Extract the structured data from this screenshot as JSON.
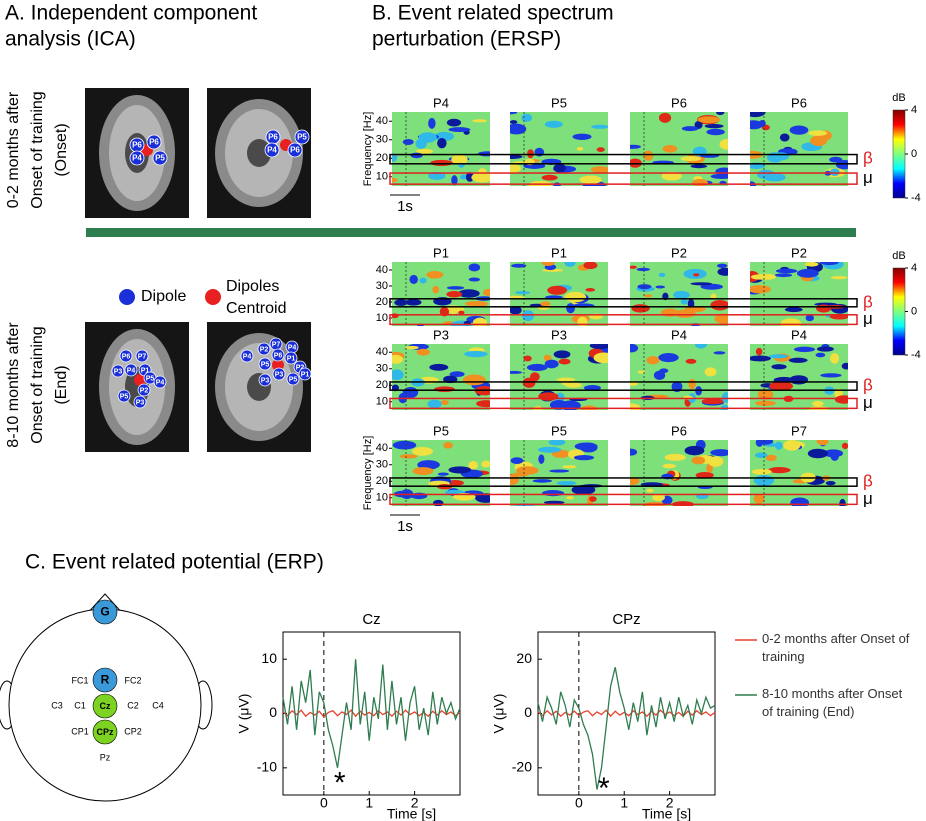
{
  "panel_a": {
    "title": [
      "A. Independent component",
      "analysis (ICA)"
    ],
    "rows": [
      {
        "label": [
          "0-2 months after",
          "Onset of training",
          "(Onset)"
        ]
      },
      {
        "label": [
          "8-10 months after",
          "Onset of training",
          "(End)"
        ]
      }
    ],
    "legend": {
      "dipole": "Dipole",
      "centroid": [
        "Dipoles",
        "Centroid"
      ]
    },
    "onset_axial": [
      "P6",
      "P6",
      "P4",
      "P5"
    ],
    "onset_coronal": [
      "P5",
      "P6",
      "P4",
      "P6"
    ],
    "end_axial": [
      "P6",
      "P7",
      "P3",
      "P4",
      "P1",
      "P5",
      "P2",
      "P4",
      "P5",
      "P3"
    ],
    "end_coronal": [
      "P7",
      "P4",
      "P2",
      "P6",
      "P4",
      "P5",
      "P1",
      "P3",
      "P2",
      "P5",
      "P1",
      "P3"
    ]
  },
  "panel_b": {
    "title": [
      "B. Event related spectrum",
      "perturbation (ERSP)"
    ],
    "y_label": "Frequency [Hz]",
    "ylim": [
      5,
      45
    ],
    "yticks": [
      10,
      20,
      30,
      40
    ],
    "rows": [
      [
        "P4",
        "P5",
        "P6",
        "P6"
      ],
      [
        "P1",
        "P1",
        "P2",
        "P2"
      ],
      [
        "P3",
        "P3",
        "P4",
        "P4"
      ],
      [
        "P5",
        "P5",
        "P6",
        "P7"
      ]
    ],
    "bands": [
      {
        "label": "β",
        "range": [
          17,
          22
        ],
        "color": "#000000",
        "label_color": "#e02020"
      },
      {
        "label": "μ",
        "range": [
          6,
          12
        ],
        "color": "#e02020",
        "label_color": "#000000"
      }
    ],
    "colorbar": {
      "label": "dB",
      "clim": [
        -4,
        4
      ],
      "ticks": [
        4,
        0,
        -4
      ]
    },
    "scale_bar": "1s"
  },
  "panel_c": {
    "title": "C. Event related potential (ERP)",
    "head": {
      "ground": "G",
      "reference": "R",
      "Cz": "Cz",
      "CPz": "CPz",
      "others": [
        "FC1",
        "FC2",
        "C3",
        "C1",
        "C2",
        "C4",
        "CP1",
        "CP2",
        "Pz"
      ]
    }
  },
  "chart_data": [
    {
      "type": "line",
      "title": "Cz",
      "x_label": "Time [s]",
      "y_label": "V (μV)",
      "x": [
        -0.9,
        -0.8,
        -0.7,
        -0.6,
        -0.5,
        -0.4,
        -0.3,
        -0.2,
        -0.1,
        0,
        0.1,
        0.2,
        0.3,
        0.4,
        0.5,
        0.6,
        0.7,
        0.8,
        0.9,
        1,
        1.1,
        1.2,
        1.3,
        1.4,
        1.5,
        1.6,
        1.7,
        1.8,
        1.9,
        2,
        2.1,
        2.2,
        2.3,
        2.4,
        2.5,
        2.6,
        2.7,
        2.8,
        2.9,
        3
      ],
      "xlim": [
        -0.9,
        3
      ],
      "xticks": [
        0,
        1,
        2
      ],
      "ylim": [
        -15,
        15
      ],
      "yticks": [
        -10,
        0,
        10
      ],
      "vline": 0,
      "annotation": {
        "text": "*",
        "x": 0.35,
        "y": -12
      },
      "series": [
        {
          "name": "0-2 months after Onset of training",
          "color": "#e8412c",
          "values": [
            0.3,
            -0.4,
            0.5,
            -0.2,
            0.6,
            -0.5,
            0.2,
            -0.3,
            0.4,
            -0.6,
            0.2,
            0.5,
            -0.4,
            0.3,
            -0.2,
            0.6,
            -0.5,
            0.4,
            -0.3,
            0.2,
            -0.4,
            0.5,
            -0.2,
            0.3,
            -0.5,
            0.4,
            -0.3,
            0.6,
            -0.2,
            0.3,
            -0.4,
            0.2,
            -0.5,
            0.4,
            -0.3,
            0.5,
            -0.2,
            0.3,
            -0.4,
            0.2
          ]
        },
        {
          "name": "8-10 months after Onset of training (End)",
          "color": "#2e7d4f",
          "values": [
            3,
            -2,
            5,
            -3,
            6,
            2,
            8,
            -4,
            4,
            2,
            -3,
            -6,
            -10,
            -4,
            2,
            -3,
            10,
            -2,
            4,
            -5,
            3,
            -1,
            9,
            -3,
            6,
            -2,
            3,
            -5,
            2,
            5,
            -3,
            1,
            -4,
            4,
            -2,
            3,
            0,
            2,
            -1,
            1
          ]
        }
      ]
    },
    {
      "type": "line",
      "title": "CPz",
      "x_label": "Time [s]",
      "y_label": "V (μV)",
      "x": [
        -0.9,
        -0.8,
        -0.7,
        -0.6,
        -0.5,
        -0.4,
        -0.3,
        -0.2,
        -0.1,
        0,
        0.1,
        0.2,
        0.3,
        0.4,
        0.5,
        0.6,
        0.7,
        0.8,
        0.9,
        1,
        1.1,
        1.2,
        1.3,
        1.4,
        1.5,
        1.6,
        1.7,
        1.8,
        1.9,
        2,
        2.1,
        2.2,
        2.3,
        2.4,
        2.5,
        2.6,
        2.7,
        2.8,
        2.9,
        3
      ],
      "xlim": [
        -0.9,
        3
      ],
      "xticks": [
        0,
        1,
        2
      ],
      "ylim": [
        -30,
        30
      ],
      "yticks": [
        -20,
        0,
        20
      ],
      "vline": 0,
      "annotation": {
        "text": "*",
        "x": 0.55,
        "y": -26
      },
      "series": [
        {
          "name": "0-2 months after Onset of training",
          "color": "#e8412c",
          "values": [
            0.6,
            -0.8,
            1,
            -0.5,
            0.8,
            -1,
            0.4,
            -0.6,
            0.9,
            -0.7,
            0.5,
            1,
            -0.8,
            0.6,
            -0.4,
            1.2,
            -1,
            0.8,
            -0.6,
            0.4,
            -0.8,
            1,
            -0.4,
            0.6,
            -1,
            0.8,
            -0.6,
            1.2,
            -0.4,
            0.6,
            -0.8,
            0.4,
            -1,
            0.8,
            -0.6,
            1,
            -0.4,
            0.6,
            -0.8,
            0.4
          ]
        },
        {
          "name": "8-10 months after Onset of training (End)",
          "color": "#2e7d4f",
          "values": [
            4,
            -3,
            6,
            2,
            -4,
            8,
            3,
            -5,
            5,
            2,
            -4,
            -8,
            -15,
            -28,
            -20,
            -5,
            10,
            17,
            8,
            2,
            -6,
            4,
            -3,
            8,
            -8,
            3,
            -5,
            6,
            -2,
            4,
            -3,
            6,
            -1,
            3,
            -4,
            5,
            0,
            6,
            2,
            3
          ]
        }
      ]
    }
  ]
}
